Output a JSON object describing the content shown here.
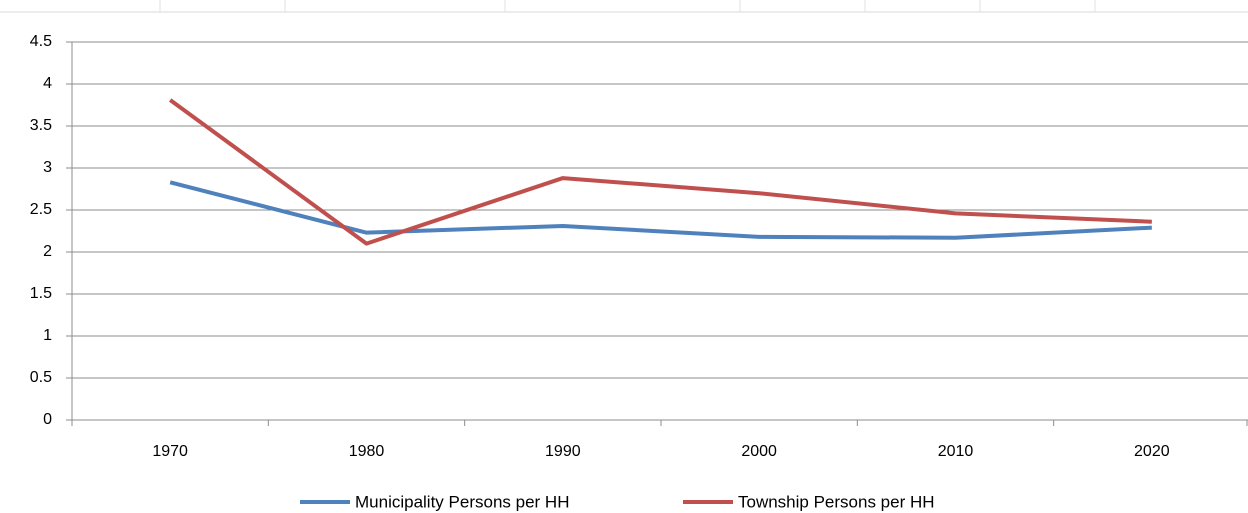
{
  "chart_data": {
    "type": "line",
    "categories": [
      "1970",
      "1980",
      "1990",
      "2000",
      "2010",
      "2020"
    ],
    "series": [
      {
        "name": "Municipality Persons per HH",
        "color": "#4f81bd",
        "values": [
          2.83,
          2.23,
          2.31,
          2.18,
          2.17,
          2.29
        ]
      },
      {
        "name": "Township Persons per HH",
        "color": "#c0504d",
        "values": [
          3.81,
          2.1,
          2.88,
          2.7,
          2.46,
          2.36
        ]
      }
    ],
    "ylim": [
      0,
      4.5
    ],
    "yticks": [
      0,
      0.5,
      1,
      1.5,
      2,
      2.5,
      3,
      3.5,
      4,
      4.5
    ],
    "grid": true,
    "legend": "bottom"
  }
}
